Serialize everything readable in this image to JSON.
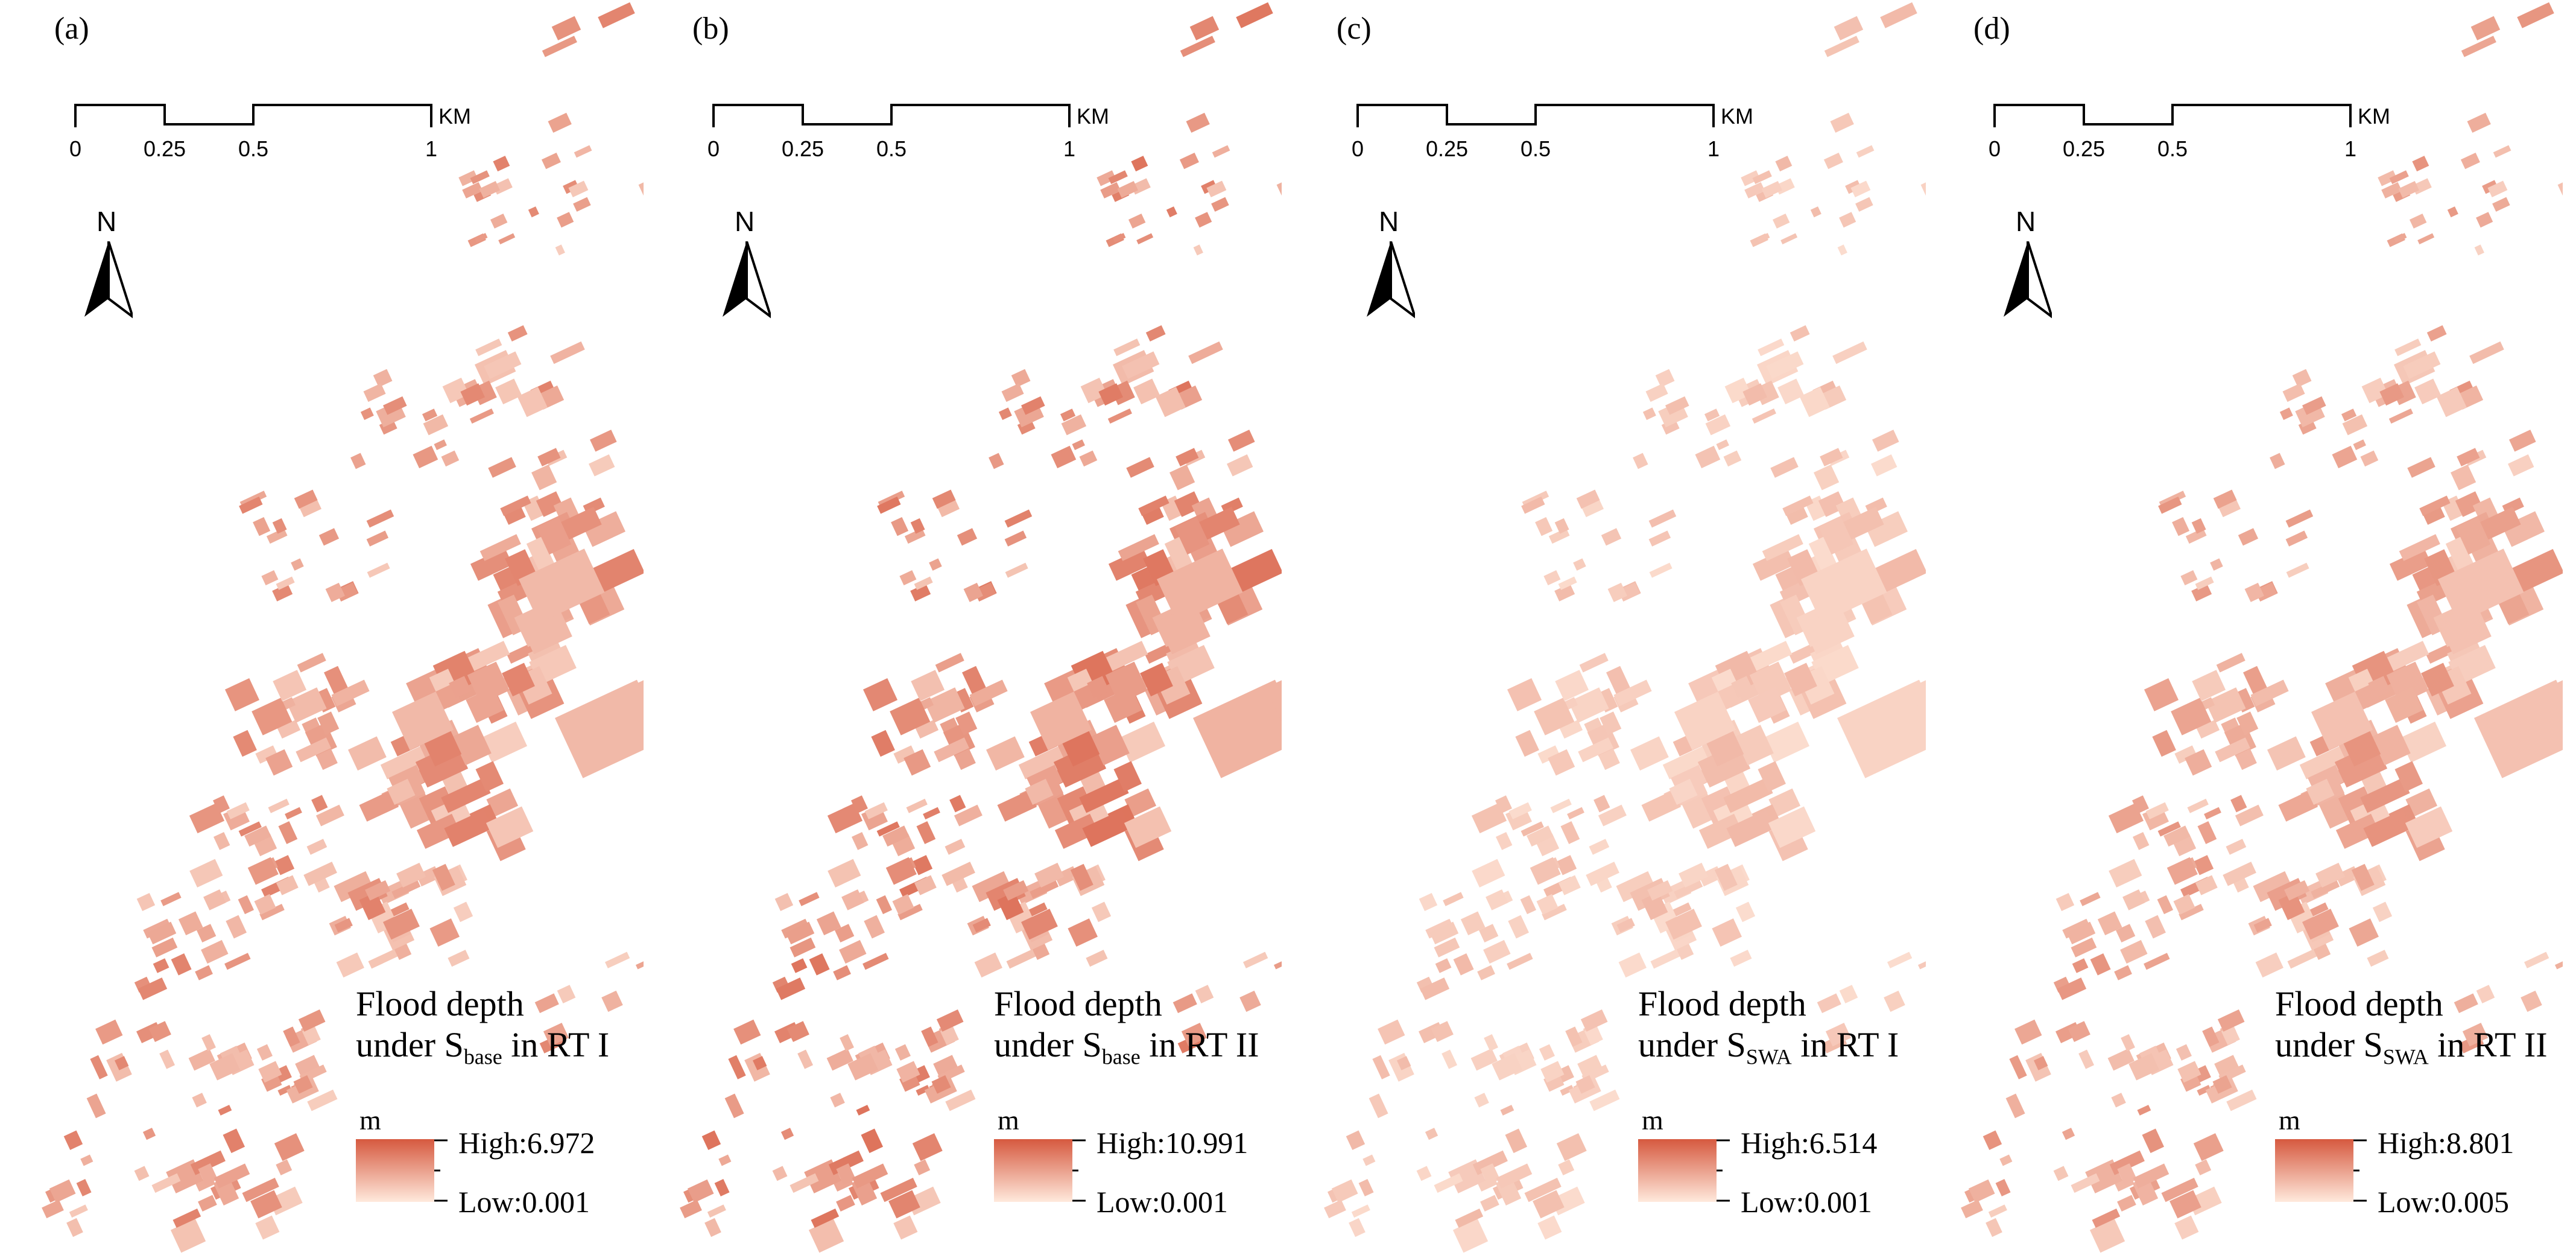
{
  "colors": {
    "high": "#d6593f",
    "low": "#ffe9dc",
    "north_arrow": "#000000"
  },
  "scale_bar": {
    "ticks": [
      "0",
      "0.25",
      "0.5",
      "1"
    ],
    "unit": "KM"
  },
  "north_label": "N",
  "legend_unit": "m",
  "panels": [
    {
      "label": "(a)",
      "title_line1": "Flood depth",
      "title_pre": "under S",
      "title_sub": "base",
      "title_post": " in RT I",
      "high": "High:6.972",
      "low": "Low:0.001",
      "intensity": 0.6
    },
    {
      "label": "(b)",
      "title_line1": "Flood depth",
      "title_pre": "under S",
      "title_sub": "base",
      "title_post": " in RT II",
      "high": "High:10.991",
      "low": "Low:0.001",
      "intensity": 0.68
    },
    {
      "label": "(c)",
      "title_line1": "Flood depth",
      "title_pre": "under S",
      "title_sub": "SWA",
      "title_post": " in RT I",
      "high": "High:6.514",
      "low": "Low:0.001",
      "intensity": 0.28
    },
    {
      "label": "(d)",
      "title_line1": "Flood depth",
      "title_pre": "under S",
      "title_sub": "SWA",
      "title_post": " in RT II",
      "high": "High:8.801",
      "low": "Low:0.005",
      "intensity": 0.5
    }
  ]
}
